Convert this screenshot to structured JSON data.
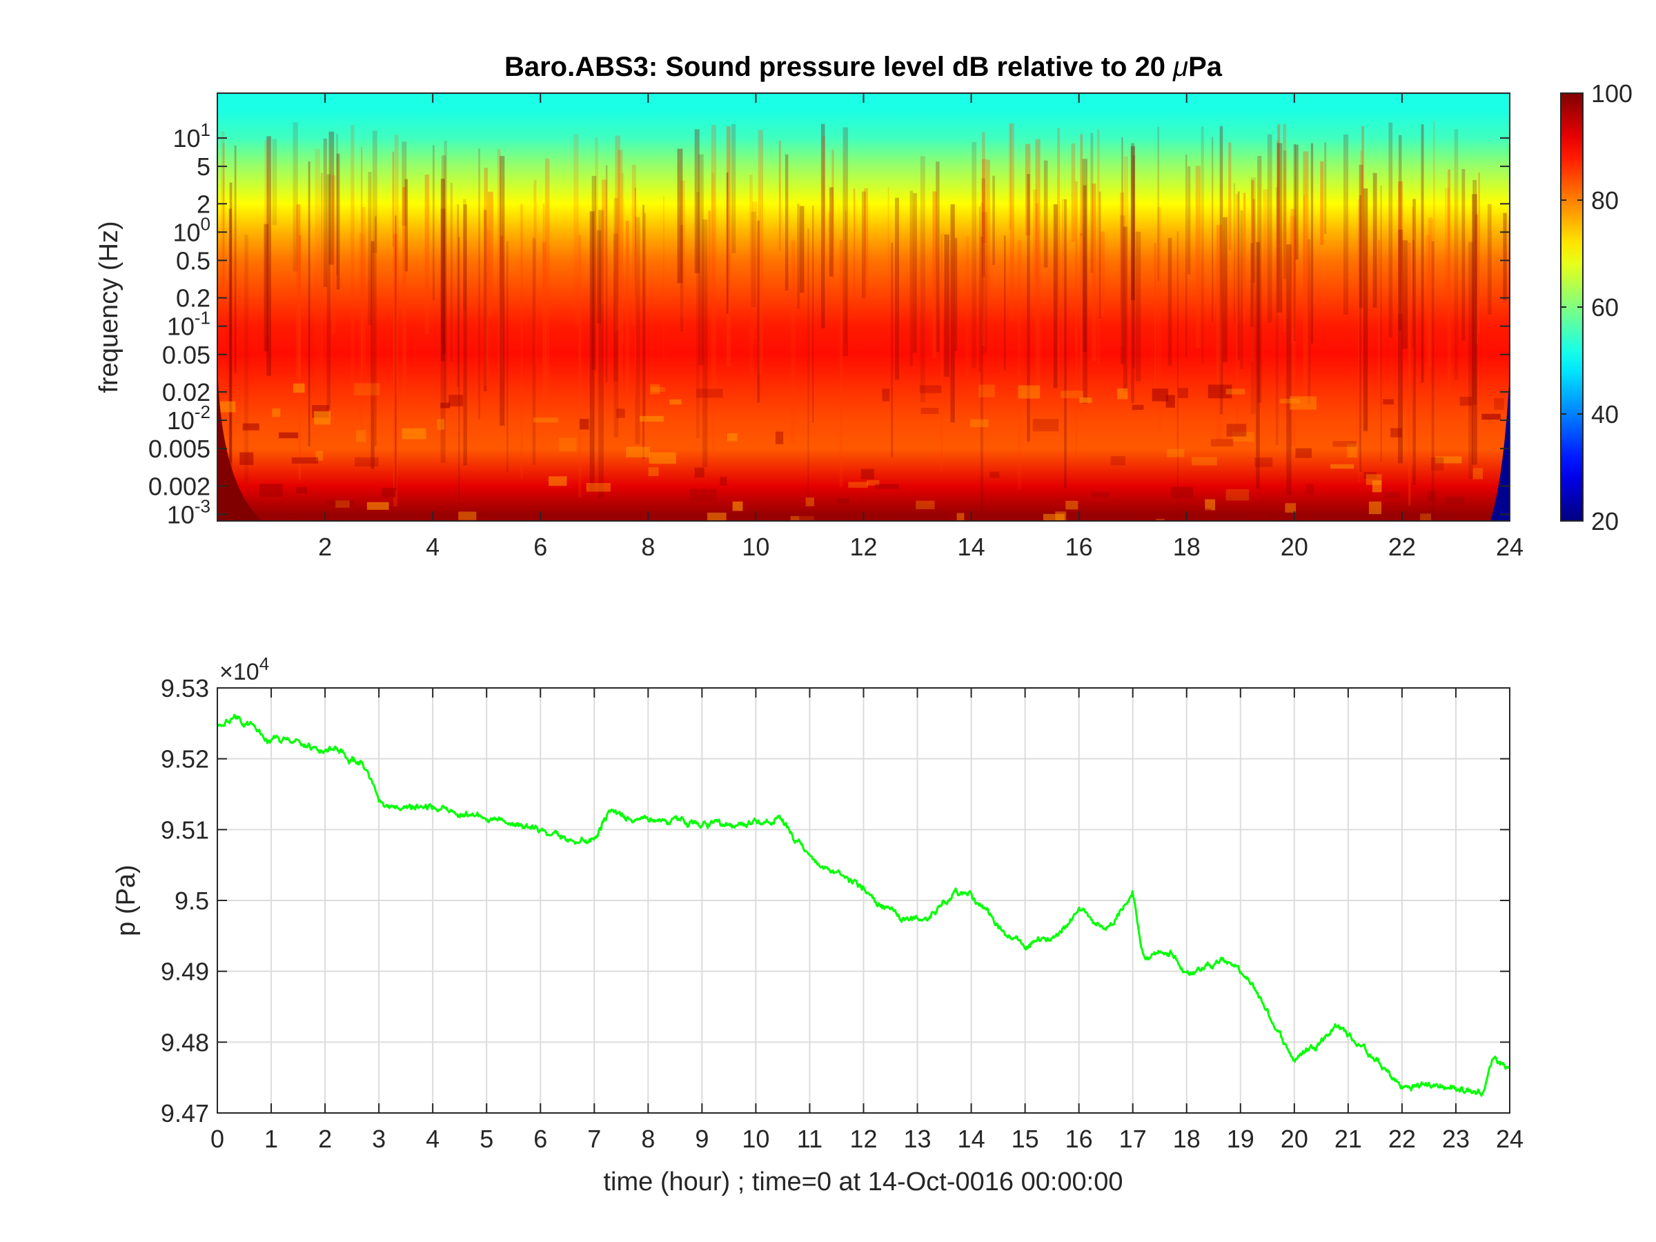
{
  "chart_data": [
    {
      "type": "heatmap",
      "title": "Baro.ABS3: Sound pressure level dB relative to 20 μPa",
      "title_main": "Baro.ABS3: Sound pressure level dB relative to 20 ",
      "title_mu": "μ",
      "title_unit": "Pa",
      "xlabel": "",
      "ylabel": "frequency (Hz)",
      "xlim": [
        0,
        24
      ],
      "ylim": [
        0.00085,
        30
      ],
      "yscale": "log",
      "x_ticks": [
        "2",
        "4",
        "6",
        "8",
        "10",
        "12",
        "14",
        "16",
        "18",
        "20",
        "22",
        "24"
      ],
      "y_ticks": [
        {
          "value": 10,
          "base": "10",
          "exp": "1"
        },
        {
          "value": 5,
          "label": "5"
        },
        {
          "value": 2,
          "label": "2"
        },
        {
          "value": 1,
          "base": "10",
          "exp": "0"
        },
        {
          "value": 0.5,
          "label": "0.5"
        },
        {
          "value": 0.2,
          "label": "0.2"
        },
        {
          "value": 0.1,
          "base": "10",
          "exp": "-1"
        },
        {
          "value": 0.05,
          "label": "0.05"
        },
        {
          "value": 0.02,
          "label": "0.02"
        },
        {
          "value": 0.01,
          "base": "10",
          "exp": "-2"
        },
        {
          "value": 0.005,
          "label": "0.005"
        },
        {
          "value": 0.002,
          "label": "0.002"
        },
        {
          "value": 0.001,
          "base": "10",
          "exp": "-3"
        }
      ],
      "colorbar": {
        "colormap": "jet",
        "range": [
          20,
          100
        ],
        "ticks": [
          "20",
          "40",
          "60",
          "80",
          "100"
        ]
      },
      "level_profile_dB": [
        {
          "frequency": 20,
          "level": 52
        },
        {
          "frequency": 10,
          "level": 55
        },
        {
          "frequency": 5,
          "level": 62
        },
        {
          "frequency": 2,
          "level": 70
        },
        {
          "frequency": 1,
          "level": 76
        },
        {
          "frequency": 0.5,
          "level": 81
        },
        {
          "frequency": 0.2,
          "level": 85
        },
        {
          "frequency": 0.1,
          "level": 88
        },
        {
          "frequency": 0.05,
          "level": 89
        },
        {
          "frequency": 0.02,
          "level": 86
        },
        {
          "frequency": 0.01,
          "level": 84
        },
        {
          "frequency": 0.005,
          "level": 83
        },
        {
          "frequency": 0.002,
          "level": 92
        },
        {
          "frequency": 0.001,
          "level": 98
        }
      ]
    },
    {
      "type": "line",
      "title": "",
      "xlabel": "time (hour) ; time=0 at 14-Oct-0016 00:00:00",
      "ylabel": "p (Pa)",
      "xlim": [
        0,
        24
      ],
      "ylim": [
        94700,
        95300
      ],
      "exponent_label": {
        "prefix": "×10",
        "exp": "4"
      },
      "grid": true,
      "x_ticks": [
        "0",
        "1",
        "2",
        "3",
        "4",
        "5",
        "6",
        "7",
        "8",
        "9",
        "10",
        "11",
        "12",
        "13",
        "14",
        "15",
        "16",
        "17",
        "18",
        "19",
        "20",
        "21",
        "22",
        "23",
        "24"
      ],
      "y_ticks": [
        {
          "value": 94700,
          "label": "9.47"
        },
        {
          "value": 94800,
          "label": "9.48"
        },
        {
          "value": 94900,
          "label": "9.49"
        },
        {
          "value": 95000,
          "label": "9.5"
        },
        {
          "value": 95100,
          "label": "9.51"
        },
        {
          "value": 95200,
          "label": "9.52"
        },
        {
          "value": 95300,
          "label": "9.53"
        }
      ],
      "series": [
        {
          "color": "#00ff00",
          "x": [
            0,
            0.4,
            1,
            1.5,
            2,
            2.3,
            2.7,
            3,
            3.5,
            4,
            4.5,
            5,
            5.5,
            6,
            6.5,
            7,
            7.3,
            7.7,
            8.2,
            9,
            9.5,
            10,
            10.4,
            11,
            11.5,
            12,
            12.3,
            12.7,
            13.2,
            13.7,
            14,
            14.5,
            15,
            15.5,
            16,
            16.5,
            17,
            17.2,
            17.7,
            18,
            18.5,
            18.8,
            19.3,
            20,
            20.5,
            20.8,
            21.3,
            22,
            22.5,
            23,
            23.5,
            23.7,
            24
          ],
          "y": [
            95250,
            95258,
            95225,
            95222,
            95210,
            95210,
            95190,
            95140,
            95130,
            95130,
            95125,
            95120,
            95110,
            95100,
            95085,
            95090,
            95130,
            95115,
            95115,
            95110,
            95100,
            95110,
            95115,
            95060,
            95035,
            95020,
            94995,
            94975,
            94975,
            95015,
            95010,
            94960,
            94935,
            94945,
            94990,
            94960,
            95010,
            94920,
            94925,
            94900,
            94910,
            94915,
            94870,
            94775,
            94805,
            94825,
            94790,
            94735,
            94740,
            94735,
            94730,
            94780,
            94765
          ]
        }
      ]
    }
  ]
}
